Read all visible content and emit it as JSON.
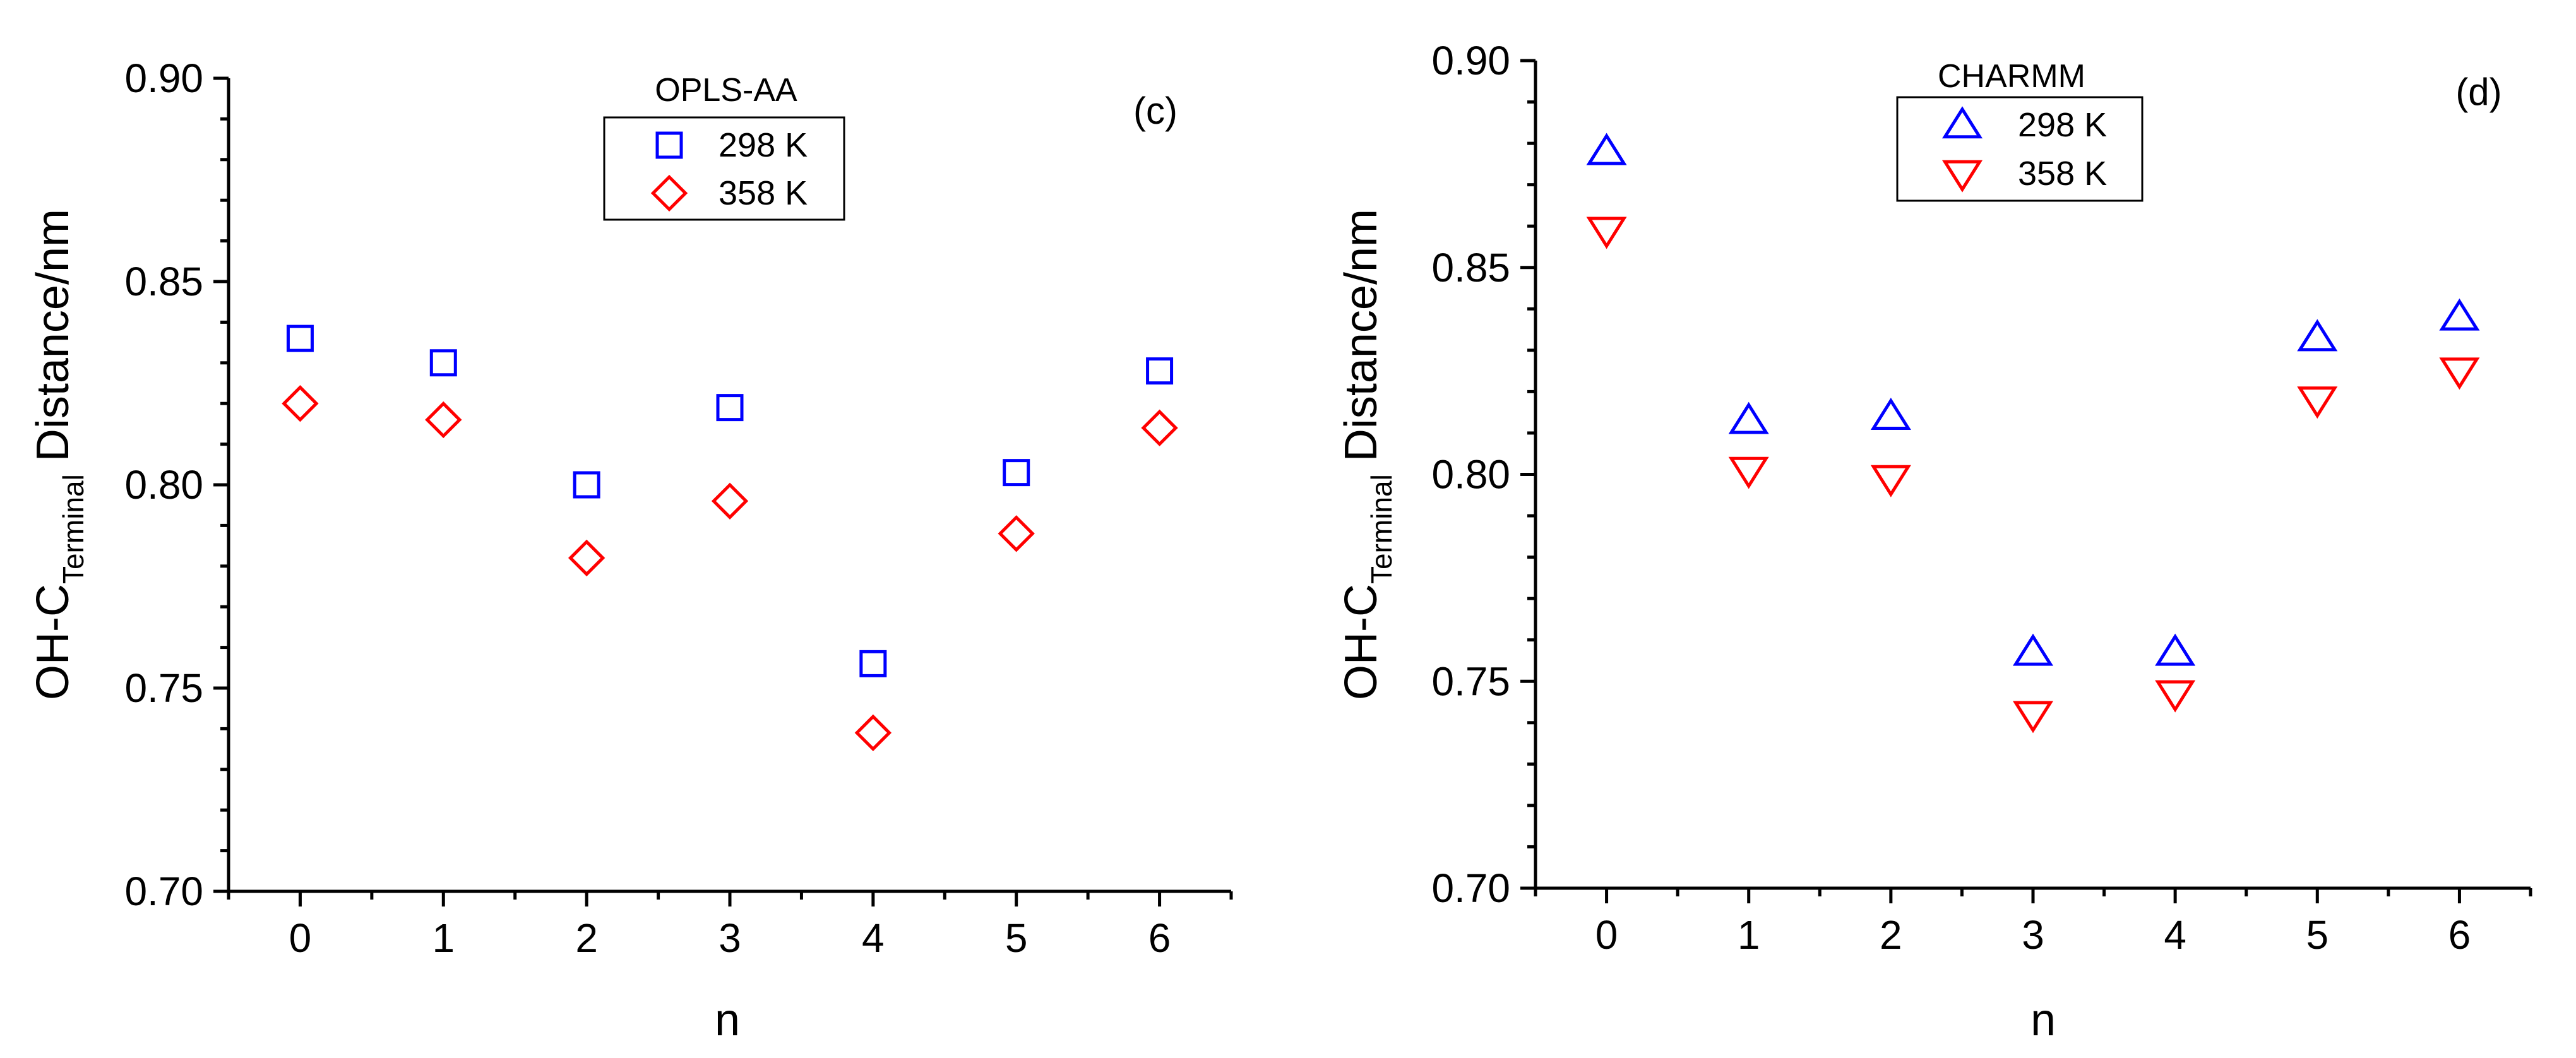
{
  "chart_data": [
    {
      "type": "scatter",
      "panel_tag": "(c)",
      "legend_title": "OPLS-AA",
      "legend_location": "top-center",
      "xlabel": "n",
      "ylabel": {
        "main": "OH-C",
        "subscript": "Terminal",
        "suffix": " Distance/nm"
      },
      "x_ticks": [
        "0",
        "1",
        "2",
        "3",
        "4",
        "5",
        "6"
      ],
      "x_range": [
        -0.5,
        6.5
      ],
      "ylim": [
        0.7,
        0.9
      ],
      "y_ticks": [
        "0.70",
        "0.75",
        "0.80",
        "0.85",
        "0.90"
      ],
      "series": [
        {
          "name": "298 K",
          "marker": "square",
          "color": "#0000ff",
          "x": [
            0,
            1,
            2,
            3,
            4,
            5,
            6
          ],
          "y": [
            0.836,
            0.83,
            0.8,
            0.819,
            0.756,
            0.803,
            0.828
          ]
        },
        {
          "name": "358 K",
          "marker": "diamond",
          "color": "#ff0000",
          "x": [
            0,
            1,
            2,
            3,
            4,
            5,
            6
          ],
          "y": [
            0.82,
            0.816,
            0.782,
            0.796,
            0.739,
            0.788,
            0.814
          ]
        }
      ]
    },
    {
      "type": "scatter",
      "panel_tag": "(d)",
      "legend_title": "CHARMM",
      "legend_location": "top-center",
      "xlabel": "n",
      "ylabel": {
        "main": "OH-C",
        "subscript": "Terminal",
        "suffix": " Distance/nm"
      },
      "x_ticks": [
        "0",
        "1",
        "2",
        "3",
        "4",
        "5",
        "6"
      ],
      "x_range": [
        -0.5,
        6.5
      ],
      "ylim": [
        0.7,
        0.9
      ],
      "y_ticks": [
        "0.70",
        "0.75",
        "0.80",
        "0.85",
        "0.90"
      ],
      "series": [
        {
          "name": "298 K",
          "marker": "triangle-up",
          "color": "#0000ff",
          "x": [
            0,
            1,
            2,
            3,
            4,
            5,
            6
          ],
          "y": [
            0.878,
            0.813,
            0.814,
            0.757,
            0.757,
            0.833,
            0.838
          ]
        },
        {
          "name": "358 K",
          "marker": "triangle-down",
          "color": "#ff0000",
          "x": [
            0,
            1,
            2,
            3,
            4,
            5,
            6
          ],
          "y": [
            0.859,
            0.801,
            0.799,
            0.742,
            0.747,
            0.818,
            0.825
          ]
        }
      ]
    }
  ]
}
